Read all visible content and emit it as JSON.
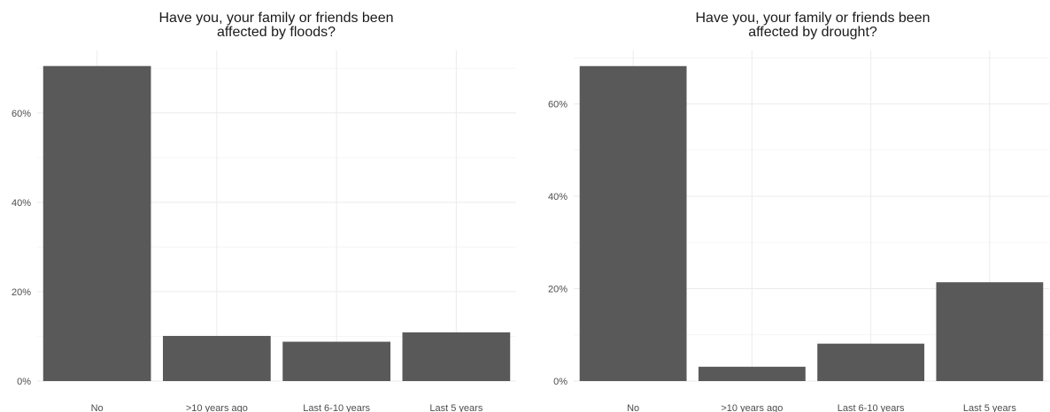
{
  "chart_data": [
    {
      "type": "bar",
      "title": "Have you, your family or friends been affected by floods?",
      "title_lines": [
        "Have you, your family or friends been",
        "affected by floods?"
      ],
      "xlabel": "",
      "ylabel": "",
      "categories": [
        "No",
        ">10 years ago",
        "Last 6-10 years",
        "Last 5 years"
      ],
      "values": [
        0.705,
        0.101,
        0.088,
        0.109
      ],
      "ylim": [
        0,
        0.74
      ],
      "yticks": [
        0,
        0.2,
        0.4,
        0.6
      ],
      "ytick_labels": [
        "0%",
        "20%",
        "40%",
        "60%"
      ],
      "grid": true,
      "legend": "none",
      "bar_color": "#595959"
    },
    {
      "type": "bar",
      "title": "Have you, your family or friends been affected by drought?",
      "title_lines": [
        "Have you, your family or friends been",
        "affected by drought?"
      ],
      "xlabel": "",
      "ylabel": "",
      "categories": [
        "No",
        ">10 years ago",
        "Last 6-10 years",
        "Last 5 years"
      ],
      "values": [
        0.682,
        0.031,
        0.081,
        0.214
      ],
      "ylim": [
        0,
        0.716
      ],
      "yticks": [
        0,
        0.2,
        0.4,
        0.6
      ],
      "ytick_labels": [
        "0%",
        "20%",
        "40%",
        "60%"
      ],
      "grid": true,
      "legend": "none",
      "bar_color": "#595959"
    }
  ]
}
